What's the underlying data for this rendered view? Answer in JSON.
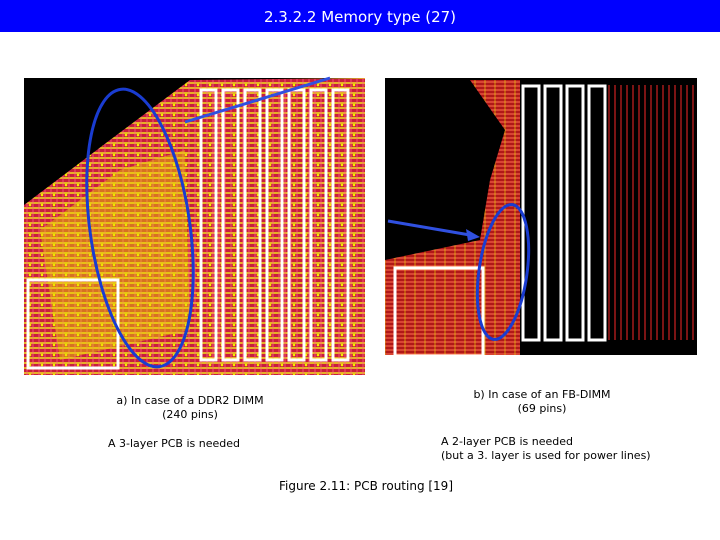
{
  "header": {
    "title": "2.3.2.2 Memory type (27)"
  },
  "figure": {
    "left": {
      "caption": [
        "a) In case of a DDR2 DIMM",
        "(240 pins)"
      ],
      "note": "A 3-layer PCB is needed"
    },
    "right": {
      "caption": [
        "b) In case of an FB-DIMM",
        "(69 pins)"
      ],
      "note": [
        "A 2-layer PCB is needed",
        "(but a 3. layer is used for power lines)"
      ]
    },
    "caption": "Figure 2.11: PCB routing [19]"
  }
}
